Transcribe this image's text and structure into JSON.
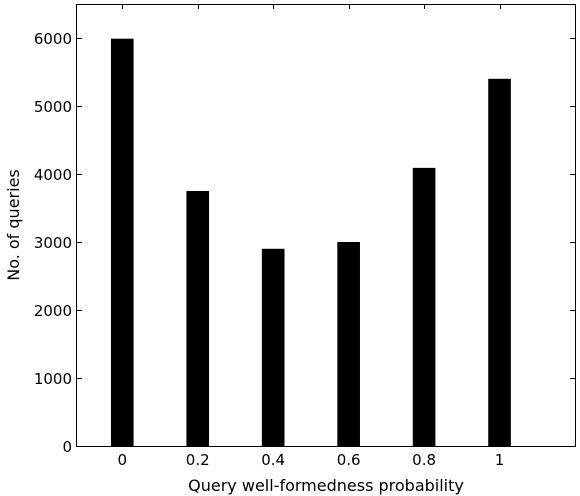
{
  "chart_data": {
    "type": "bar",
    "title": "",
    "xlabel": "Query well-formedness probability",
    "ylabel": "No. of queries",
    "categories": [
      "0",
      "0.2",
      "0.4",
      "0.6",
      "0.8",
      "1"
    ],
    "x": [
      0,
      0.2,
      0.4,
      0.6,
      0.8,
      1.0
    ],
    "values": [
      5990,
      3750,
      2900,
      3000,
      4090,
      5400
    ],
    "xlim": [
      -0.12,
      1.2
    ],
    "ylim": [
      0,
      6500
    ],
    "y_ticks": [
      0,
      1000,
      2000,
      3000,
      4000,
      5000,
      6000
    ],
    "y_tick_labels": [
      "0",
      "1000",
      "2000",
      "3000",
      "4000",
      "5000",
      "6000"
    ],
    "bar_width_data": 0.06,
    "grid": false,
    "legend": "none",
    "colors": {
      "bar": "#000000",
      "axis": "#000000",
      "background": "#ffffff"
    }
  }
}
